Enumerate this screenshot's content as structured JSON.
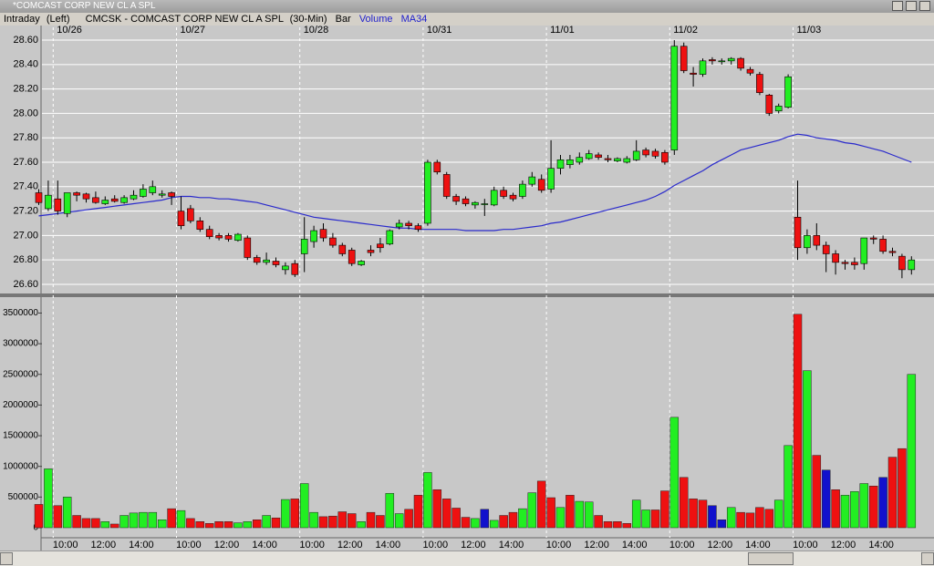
{
  "window": {
    "title": "*COMCAST CORP NEW CL A SPL"
  },
  "header": {
    "mode": "Intraday",
    "axis": "(Left)",
    "symbol": "CMCSK - COMCAST CORP NEW CL A SPL",
    "interval": "(30-Min)",
    "style": "Bar"
  },
  "chart_data": [
    {
      "type": "candlestick",
      "categories": [
        null,
        null,
        "10/26",
        null,
        null,
        null,
        null,
        null,
        null,
        null,
        null,
        null,
        null,
        null,
        null,
        "10/27",
        null,
        null,
        null,
        null,
        null,
        null,
        null,
        null,
        null,
        null,
        null,
        null,
        "10/28",
        null,
        null,
        null,
        null,
        null,
        null,
        null,
        null,
        null,
        null,
        null,
        null,
        "10/31",
        null,
        null,
        null,
        null,
        null,
        null,
        null,
        null,
        null,
        null,
        null,
        null,
        "11/01",
        null,
        null,
        null,
        null,
        null,
        null,
        null,
        null,
        null,
        null,
        null,
        null,
        "11/02",
        null,
        null,
        null,
        null,
        null,
        null,
        null,
        null,
        null,
        null,
        null,
        null,
        "11/03",
        null,
        null,
        null,
        null,
        null,
        null,
        null,
        null,
        null,
        null,
        null,
        null
      ],
      "open": [
        27.35,
        27.22,
        27.3,
        27.18,
        27.35,
        27.34,
        27.31,
        27.26,
        27.3,
        27.27,
        27.3,
        27.32,
        27.35,
        27.33,
        27.35,
        27.2,
        27.22,
        27.12,
        27.05,
        27.0,
        27.0,
        26.96,
        26.98,
        26.82,
        26.78,
        26.79,
        26.72,
        26.77,
        26.85,
        26.95,
        27.05,
        26.98,
        26.92,
        26.88,
        26.76,
        26.88,
        26.93,
        26.93,
        27.07,
        27.1,
        27.08,
        27.1,
        27.6,
        27.5,
        27.32,
        27.3,
        27.25,
        27.26,
        27.25,
        27.37,
        27.33,
        27.32,
        27.42,
        27.46,
        27.38,
        27.55,
        27.58,
        27.6,
        27.63,
        27.66,
        27.63,
        27.61,
        27.6,
        27.62,
        27.7,
        27.69,
        27.68,
        27.7,
        28.55,
        28.33,
        28.32,
        28.44,
        28.43,
        28.43,
        28.45,
        28.36,
        28.32,
        28.15,
        28.02,
        28.05,
        27.15,
        26.9,
        27.0,
        26.92,
        26.85,
        26.78,
        26.78,
        26.77,
        26.98,
        26.97,
        26.87,
        26.83,
        26.72
      ],
      "high": [
        27.38,
        27.45,
        27.45,
        27.35,
        27.36,
        27.35,
        27.36,
        27.32,
        27.33,
        27.33,
        27.37,
        27.42,
        27.45,
        27.37,
        27.36,
        27.32,
        27.25,
        27.15,
        27.08,
        27.02,
        27.02,
        27.02,
        27.0,
        26.84,
        26.86,
        26.82,
        26.78,
        26.8,
        27.15,
        27.08,
        27.1,
        27.02,
        26.94,
        26.9,
        26.8,
        26.92,
        26.98,
        27.05,
        27.13,
        27.12,
        27.1,
        27.62,
        27.62,
        27.52,
        27.34,
        27.32,
        27.28,
        27.3,
        27.4,
        27.4,
        27.35,
        27.45,
        27.52,
        27.5,
        27.78,
        27.66,
        27.66,
        27.68,
        27.7,
        27.68,
        27.66,
        27.64,
        27.65,
        27.78,
        27.72,
        27.71,
        27.7,
        28.6,
        28.58,
        28.38,
        28.45,
        28.46,
        28.45,
        28.46,
        28.46,
        28.38,
        28.34,
        28.16,
        28.08,
        28.32,
        27.45,
        27.05,
        27.1,
        26.95,
        26.88,
        26.8,
        26.82,
        26.98,
        27.0,
        27.0,
        26.9,
        26.85,
        26.83
      ],
      "low": [
        27.25,
        27.2,
        27.17,
        27.15,
        27.28,
        27.27,
        27.26,
        27.25,
        27.27,
        27.26,
        27.29,
        27.31,
        27.33,
        27.31,
        27.25,
        27.05,
        27.1,
        27.03,
        26.97,
        26.96,
        26.95,
        26.95,
        26.8,
        26.76,
        26.76,
        26.74,
        26.68,
        26.66,
        26.7,
        26.9,
        26.95,
        26.9,
        26.83,
        26.75,
        26.75,
        26.83,
        26.86,
        26.92,
        27.05,
        27.05,
        27.03,
        27.08,
        27.5,
        27.3,
        27.25,
        27.24,
        27.22,
        27.16,
        27.24,
        27.3,
        27.28,
        27.3,
        27.4,
        27.35,
        27.35,
        27.5,
        27.55,
        27.58,
        27.62,
        27.62,
        27.6,
        27.6,
        27.59,
        27.61,
        27.64,
        27.63,
        27.58,
        27.66,
        28.33,
        28.22,
        28.3,
        28.4,
        28.4,
        28.4,
        28.35,
        28.31,
        28.15,
        27.98,
        28.0,
        28.04,
        26.8,
        26.85,
        26.88,
        26.7,
        26.68,
        26.72,
        26.72,
        26.72,
        26.93,
        26.85,
        26.83,
        26.65,
        26.68
      ],
      "close": [
        27.27,
        27.33,
        27.2,
        27.35,
        27.33,
        27.3,
        27.27,
        27.29,
        27.28,
        27.31,
        27.33,
        27.38,
        27.4,
        27.34,
        27.32,
        27.08,
        27.12,
        27.05,
        26.99,
        26.98,
        26.97,
        27.01,
        26.82,
        26.78,
        26.8,
        26.76,
        26.75,
        26.68,
        26.97,
        27.04,
        26.98,
        26.92,
        26.85,
        26.77,
        26.79,
        26.86,
        26.9,
        27.04,
        27.1,
        27.08,
        27.05,
        27.6,
        27.52,
        27.32,
        27.28,
        27.26,
        27.27,
        27.26,
        27.37,
        27.32,
        27.3,
        27.42,
        27.48,
        27.37,
        27.55,
        27.62,
        27.62,
        27.64,
        27.67,
        27.64,
        27.62,
        27.63,
        27.63,
        27.69,
        27.66,
        27.65,
        27.6,
        28.55,
        28.35,
        28.32,
        28.43,
        28.43,
        28.43,
        28.45,
        28.37,
        28.33,
        28.17,
        28.0,
        28.06,
        28.3,
        26.9,
        27.0,
        26.92,
        26.85,
        26.78,
        26.77,
        26.76,
        26.98,
        26.97,
        26.87,
        26.86,
        26.72,
        26.8
      ],
      "up_color": "#22ee22",
      "down_color": "#ee1111",
      "series": [
        {
          "name": "MA34",
          "color": "#2a2acc",
          "values": [
            27.16,
            27.17,
            27.18,
            27.19,
            27.2,
            27.21,
            27.22,
            27.23,
            27.24,
            27.25,
            27.26,
            27.27,
            27.28,
            27.29,
            27.31,
            27.32,
            27.32,
            27.31,
            27.31,
            27.3,
            27.3,
            27.29,
            27.28,
            27.27,
            27.25,
            27.23,
            27.21,
            27.19,
            27.17,
            27.15,
            27.14,
            27.13,
            27.12,
            27.11,
            27.1,
            27.09,
            27.08,
            27.07,
            27.06,
            27.06,
            27.05,
            27.05,
            27.05,
            27.05,
            27.05,
            27.04,
            27.04,
            27.04,
            27.04,
            27.05,
            27.05,
            27.06,
            27.07,
            27.08,
            27.1,
            27.11,
            27.13,
            27.15,
            27.17,
            27.19,
            27.21,
            27.23,
            27.25,
            27.27,
            27.29,
            27.32,
            27.36,
            27.41,
            27.45,
            27.49,
            27.53,
            27.58,
            27.62,
            27.66,
            27.7,
            27.72,
            27.74,
            27.76,
            27.78,
            27.81,
            27.83,
            27.82,
            27.8,
            27.79,
            27.78,
            27.76,
            27.75,
            27.73,
            27.71,
            27.69,
            27.66,
            27.63,
            27.6
          ]
        }
      ],
      "ylim": [
        26.54,
        28.66
      ],
      "yticks": [
        {
          "value": 26.6,
          "label": "26.60"
        },
        {
          "value": 26.8,
          "label": "26.80"
        },
        {
          "value": 27.0,
          "label": "27.00"
        },
        {
          "value": 27.2,
          "label": "27.20"
        },
        {
          "value": 27.4,
          "label": "27.40"
        },
        {
          "value": 27.6,
          "label": "27.60"
        },
        {
          "value": 27.8,
          "label": "27.80"
        },
        {
          "value": 28.0,
          "label": "28.00"
        },
        {
          "value": 28.2,
          "label": "28.20"
        },
        {
          "value": 28.4,
          "label": "28.40"
        },
        {
          "value": 28.6,
          "label": "28.60"
        }
      ],
      "grid": true
    },
    {
      "type": "bar",
      "name": "Volume",
      "categories": [
        null,
        null,
        null,
        "10:00",
        null,
        null,
        null,
        "12:00",
        null,
        null,
        null,
        "14:00",
        null,
        null,
        null,
        null,
        "10:00",
        null,
        null,
        null,
        "12:00",
        null,
        null,
        null,
        "14:00",
        null,
        null,
        null,
        null,
        "10:00",
        null,
        null,
        null,
        "12:00",
        null,
        null,
        null,
        "14:00",
        null,
        null,
        null,
        null,
        "10:00",
        null,
        null,
        null,
        "12:00",
        null,
        null,
        null,
        "14:00",
        null,
        null,
        null,
        null,
        "10:00",
        null,
        null,
        null,
        "12:00",
        null,
        null,
        null,
        "14:00",
        null,
        null,
        null,
        null,
        "10:00",
        null,
        null,
        null,
        "12:00",
        null,
        null,
        null,
        "14:00",
        null,
        null,
        null,
        null,
        "10:00",
        null,
        null,
        null,
        "12:00",
        null,
        null,
        null,
        "14:00",
        null,
        null,
        null
      ],
      "values": [
        380000,
        960000,
        360000,
        500000,
        200000,
        150000,
        150000,
        100000,
        60000,
        200000,
        240000,
        250000,
        250000,
        130000,
        310000,
        280000,
        150000,
        100000,
        70000,
        100000,
        100000,
        80000,
        100000,
        130000,
        200000,
        160000,
        460000,
        470000,
        720000,
        250000,
        180000,
        190000,
        260000,
        230000,
        100000,
        250000,
        200000,
        560000,
        230000,
        300000,
        530000,
        900000,
        620000,
        470000,
        320000,
        170000,
        150000,
        300000,
        120000,
        200000,
        250000,
        310000,
        570000,
        760000,
        490000,
        330000,
        530000,
        430000,
        420000,
        200000,
        100000,
        100000,
        70000,
        450000,
        290000,
        290000,
        600000,
        1800000,
        820000,
        470000,
        450000,
        360000,
        130000,
        330000,
        250000,
        240000,
        330000,
        300000,
        450000,
        1340000,
        3480000,
        2560000,
        1180000,
        940000,
        620000,
        530000,
        590000,
        720000,
        680000,
        820000,
        1150000,
        1290000,
        2500000
      ],
      "colors": [
        "#ee1111",
        "#22ee22",
        "#ee1111",
        "#22ee22",
        "#ee1111",
        "#ee1111",
        "#ee1111",
        "#22ee22",
        "#ee1111",
        "#22ee22",
        "#22ee22",
        "#22ee22",
        "#22ee22",
        "#22ee22",
        "#ee1111",
        "#22ee22",
        "#ee1111",
        "#ee1111",
        "#ee1111",
        "#ee1111",
        "#ee1111",
        "#22ee22",
        "#22ee22",
        "#ee1111",
        "#22ee22",
        "#ee1111",
        "#22ee22",
        "#ee1111",
        "#22ee22",
        "#22ee22",
        "#ee1111",
        "#ee1111",
        "#ee1111",
        "#ee1111",
        "#22ee22",
        "#ee1111",
        "#ee1111",
        "#22ee22",
        "#22ee22",
        "#ee1111",
        "#ee1111",
        "#22ee22",
        "#ee1111",
        "#ee1111",
        "#ee1111",
        "#ee1111",
        "#22ee22",
        "#1111cc",
        "#22ee22",
        "#ee1111",
        "#ee1111",
        "#22ee22",
        "#22ee22",
        "#ee1111",
        "#ee1111",
        "#22ee22",
        "#ee1111",
        "#22ee22",
        "#22ee22",
        "#ee1111",
        "#ee1111",
        "#ee1111",
        "#ee1111",
        "#22ee22",
        "#22ee22",
        "#ee1111",
        "#ee1111",
        "#22ee22",
        "#ee1111",
        "#ee1111",
        "#ee1111",
        "#1111cc",
        "#1111cc",
        "#22ee22",
        "#ee1111",
        "#ee1111",
        "#ee1111",
        "#ee1111",
        "#22ee22",
        "#22ee22",
        "#ee1111",
        "#22ee22",
        "#ee1111",
        "#1111cc",
        "#ee1111",
        "#22ee22",
        "#22ee22",
        "#22ee22",
        "#ee1111",
        "#1111cc",
        "#ee1111",
        "#ee1111",
        "#22ee22"
      ],
      "ylim": [
        0,
        3700000
      ],
      "yticks": [
        0,
        500000,
        1000000,
        1500000,
        2000000,
        2500000,
        3000000,
        3500000
      ],
      "grid": false
    }
  ]
}
